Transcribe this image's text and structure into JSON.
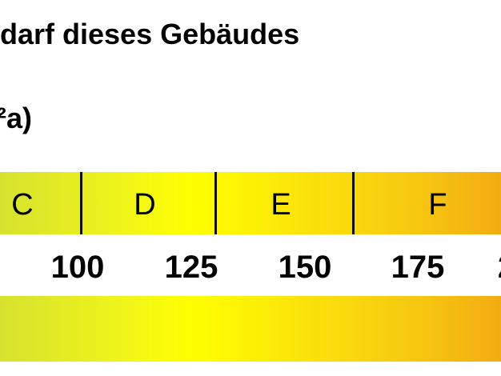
{
  "heading": "darf dieses Gebäudes",
  "unit": "²a)",
  "classes": [
    "C",
    "D",
    "E",
    "F"
  ],
  "ticks": [
    "100",
    "125",
    "150",
    "175",
    "2"
  ],
  "colors": {
    "scale_start": "#d6e22e",
    "scale_mid": "#ffff00",
    "scale_end": "#f2ac12"
  }
}
